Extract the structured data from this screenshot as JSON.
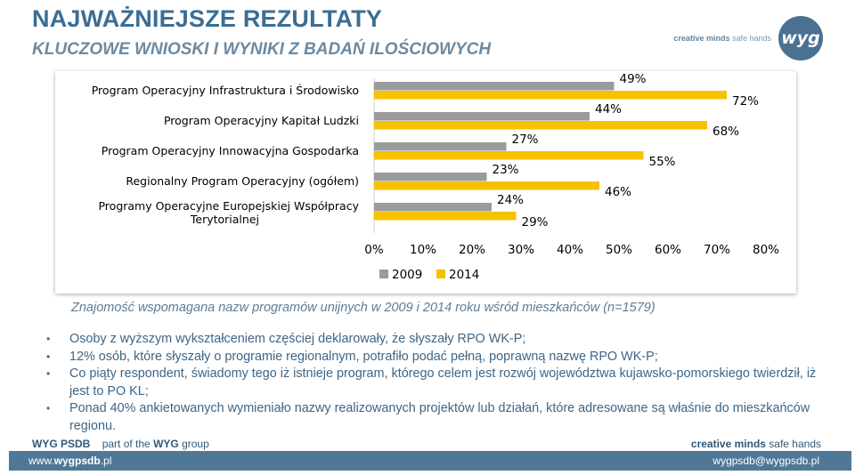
{
  "header": {
    "title": "NAJWAŻNIEJSZE REZULTATY",
    "subtitle": "KLUCZOWE WNIOSKI I WYNIKI Z BADAŃ ILOŚCIOWYCH",
    "logo_tagline_bold": "creative minds",
    "logo_tagline_rest": " safe hands",
    "logo_text": "wyg"
  },
  "chart_data": {
    "type": "bar",
    "orientation": "horizontal",
    "categories": [
      "Program Operacyjny Infrastruktura i Środowisko",
      "Program Operacyjny Kapitał Ludzki",
      "Program Operacyjny Innowacyjna Gospodarka",
      "Regionalny Program Operacyjny (ogółem)",
      "Programy Operacyjne Europejskiej Współpracy Terytorialnej"
    ],
    "series": [
      {
        "name": "2009",
        "values": [
          49,
          44,
          27,
          23,
          24
        ],
        "labels": [
          "49%",
          "44%",
          "27%",
          "23%",
          "24%"
        ],
        "color": "#9b9b9b"
      },
      {
        "name": "2014",
        "values": [
          72,
          68,
          55,
          46,
          29
        ],
        "labels": [
          "72%",
          "68%",
          "55%",
          "46%",
          "29%"
        ],
        "color": "#f5c200"
      }
    ],
    "xlim": [
      0,
      80
    ],
    "ticks": [
      "0%",
      "10%",
      "20%",
      "30%",
      "40%",
      "50%",
      "60%",
      "70%",
      "80%"
    ],
    "legend_position": "bottom",
    "grid": false
  },
  "caption": "Znajomość wspomagana nazw programów unijnych w 2009 i 2014 roku wśród mieszkańców (n=1579)",
  "bullets": [
    "Osoby z wyższym wykształceniem częściej deklarowały, że słyszały RPO WK-P;",
    "12% osób, które słyszały o programie regionalnym, potrafiło podać pełną, poprawną nazwę RPO WK-P;",
    "Co piąty respondent, świadomy tego iż istnieje program, którego celem jest rozwój województwa kujawsko-pomorskiego twierdził, iż jest to PO KL;",
    "Ponad 40% ankietowanych wymieniało nazwy realizowanych projektów lub działań, które adresowane są właśnie do mieszkańców regionu."
  ],
  "footer": {
    "org_bold": "WYG PSDB",
    "org_mid": "part of the ",
    "org_group_bold": "WYG",
    "org_group_rest": " group",
    "right_bold": "creative minds",
    "right_rest": " safe hands",
    "www_prefix": "www.",
    "www_bold": "wygpsdb",
    "www_suffix": ".pl",
    "email": "wygpsdb@wygpsdb.pl"
  }
}
